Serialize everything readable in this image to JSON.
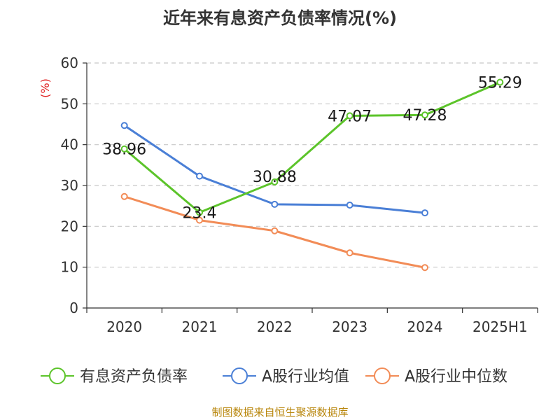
{
  "chart_data": {
    "type": "line",
    "title": "近年来有息资产负债率情况(%)",
    "ylabel": "(%)",
    "xlabel": "",
    "categories": [
      "2020",
      "2021",
      "2022",
      "2023",
      "2024",
      "2025H1"
    ],
    "ylim": [
      0,
      60
    ],
    "yticks": [
      0,
      10,
      20,
      30,
      40,
      50,
      60
    ],
    "grid": true,
    "legend_position": "bottom",
    "series": [
      {
        "name": "有息资产负债率",
        "color": "#5cc42a",
        "values": [
          38.96,
          23.4,
          30.88,
          47.07,
          47.28,
          55.29
        ],
        "labels": [
          "38.96",
          "23.4",
          "30.88",
          "47.07",
          "47.28",
          "55.29"
        ]
      },
      {
        "name": "A股行业均值",
        "color": "#4a7fd6",
        "values": [
          44.7,
          32.3,
          25.4,
          25.2,
          23.3,
          null
        ]
      },
      {
        "name": "A股行业中位数",
        "color": "#f28c57",
        "values": [
          27.3,
          21.5,
          18.9,
          13.5,
          9.9,
          null
        ]
      }
    ],
    "source": "制图数据来自恒生聚源数据库"
  }
}
